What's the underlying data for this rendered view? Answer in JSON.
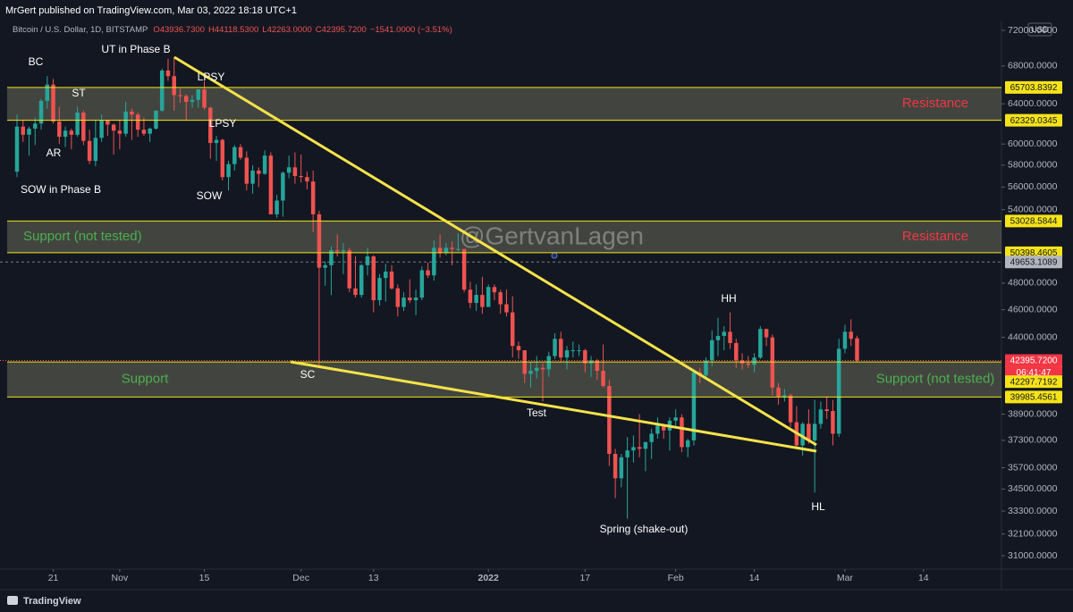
{
  "header": {
    "publisher": "MrGert published on TradingView.com, Mar 03, 2022 18:18 UTC+1",
    "symbol": "Bitcoin / U.S. Dollar, 1D, BITSTAMP",
    "ohlc": [
      "O43936.7300",
      "H44118.5300",
      "L42263.0000",
      "C42395.7200",
      "−1541.0000 (−3.51%)"
    ]
  },
  "footer": {
    "brand": "TradingView"
  },
  "chart_data": {
    "type": "candlestick",
    "currency": "USD",
    "log_scale": true,
    "grid": false,
    "up_color": "#26a69a",
    "down_color": "#ef5350",
    "watermark": "@GertvanLagen",
    "ylim": [
      30340,
      72620
    ],
    "yticks": [
      {
        "value": 72000,
        "label": "72000.0000"
      },
      {
        "value": 68000,
        "label": "68000.0000"
      },
      {
        "value": 64000,
        "label": "64000.0000"
      },
      {
        "value": 60000,
        "label": "60000.0000"
      },
      {
        "value": 58000,
        "label": "58000.0000"
      },
      {
        "value": 56000,
        "label": "56000.0000"
      },
      {
        "value": 54000,
        "label": "54000.0000"
      },
      {
        "value": 48000,
        "label": "48000.0000"
      },
      {
        "value": 46000,
        "label": "46000.0000"
      },
      {
        "value": 44000,
        "label": "44000.0000"
      },
      {
        "value": 38900,
        "label": "38900.0000"
      },
      {
        "value": 37300,
        "label": "37300.0000"
      },
      {
        "value": 35700,
        "label": "35700.0000"
      },
      {
        "value": 34500,
        "label": "34500.0000"
      },
      {
        "value": 33300,
        "label": "33300.0000"
      },
      {
        "value": 32100,
        "label": "32100.0000"
      },
      {
        "value": 31000,
        "label": "31000.0000"
      }
    ],
    "xlim": [
      -2.81,
      162.9
    ],
    "xticks": [
      {
        "value": 6,
        "label": "21"
      },
      {
        "value": 17,
        "label": "Nov"
      },
      {
        "value": 31,
        "label": "15"
      },
      {
        "value": 47,
        "label": "Dec"
      },
      {
        "value": 59,
        "label": "13"
      },
      {
        "value": 78,
        "label": "2022"
      },
      {
        "value": 94,
        "label": "17"
      },
      {
        "value": 109,
        "label": "Feb"
      },
      {
        "value": 122,
        "label": "14"
      },
      {
        "value": 137,
        "label": "Mar"
      },
      {
        "value": 150,
        "label": "14"
      }
    ],
    "zones": [
      {
        "top": {
          "value": 65703.8392,
          "label": "65703.8392"
        },
        "bottom": {
          "value": 62329.0345,
          "label": "62329.0345"
        },
        "right_label": "Resistance"
      },
      {
        "top": {
          "value": 53028.5844,
          "label": "53028.5844"
        },
        "bottom": {
          "value": 50398.4605,
          "label": "50398.4605"
        },
        "left_label": "Support (not tested)",
        "right_label": "Resistance"
      },
      {
        "top": {
          "value": 42297.7192,
          "label": "42297.7192"
        },
        "bottom": {
          "value": 39985.4561,
          "label": "39985.4561"
        },
        "left_label": "Support",
        "right_label": "Support (not tested)"
      }
    ],
    "price_lines": [
      {
        "value": 49653.1089,
        "label": "49653.1089"
      }
    ],
    "last_price": {
      "value": 42395.72,
      "label": "42395.7200",
      "countdown": "06:41:47"
    },
    "annotations": [
      "BC",
      "ST",
      "AR",
      "SOW in Phase B",
      "UT in Phase B",
      "LPSY",
      "LPSY",
      "SOW",
      "SC",
      "Test",
      "Spring (shake-out)",
      "HH",
      "HL"
    ],
    "candles": [
      [
        57400,
        62900,
        56900,
        61700
      ],
      [
        61700,
        62300,
        60200,
        60900
      ],
      [
        60900,
        61700,
        58900,
        61500
      ],
      [
        61500,
        62600,
        59900,
        62000
      ],
      [
        62000,
        64500,
        61400,
        64300
      ],
      [
        64300,
        66900,
        63500,
        66000
      ],
      [
        66000,
        66600,
        62000,
        62200
      ],
      [
        62200,
        63700,
        60000,
        60700
      ],
      [
        60700,
        61700,
        59700,
        61300
      ],
      [
        61300,
        61500,
        59500,
        60900
      ],
      [
        60900,
        63700,
        60700,
        63100
      ],
      [
        63100,
        63300,
        59900,
        60300
      ],
      [
        60300,
        61400,
        58100,
        58400
      ],
      [
        58400,
        62400,
        57900,
        60600
      ],
      [
        60600,
        62900,
        60200,
        62300
      ],
      [
        62300,
        62400,
        60800,
        61900
      ],
      [
        61900,
        62000,
        59000,
        61300
      ],
      [
        61300,
        62400,
        59500,
        61000
      ],
      [
        61000,
        64200,
        60700,
        63200
      ],
      [
        63200,
        63500,
        60400,
        62900
      ],
      [
        62900,
        63100,
        60700,
        61400
      ],
      [
        61400,
        62600,
        60800,
        61000
      ],
      [
        61000,
        61600,
        60200,
        61500
      ],
      [
        61500,
        63300,
        61400,
        63300
      ],
      [
        63300,
        67700,
        63200,
        67500
      ],
      [
        67500,
        68800,
        66400,
        66900
      ],
      [
        66900,
        69000,
        63300,
        64900
      ],
      [
        64900,
        65600,
        64100,
        64800
      ],
      [
        64800,
        65000,
        62300,
        64200
      ],
      [
        64200,
        64900,
        63600,
        64400
      ],
      [
        64400,
        65500,
        63600,
        65500
      ],
      [
        65500,
        66400,
        63400,
        63600
      ],
      [
        63600,
        63700,
        58600,
        60100
      ],
      [
        60100,
        60800,
        58400,
        60400
      ],
      [
        60400,
        60500,
        56600,
        56900
      ],
      [
        56900,
        58400,
        55700,
        58100
      ],
      [
        58100,
        59900,
        57500,
        59700
      ],
      [
        59700,
        60000,
        58500,
        58700
      ],
      [
        58700,
        59300,
        55700,
        56300
      ],
      [
        56300,
        58000,
        55400,
        57500
      ],
      [
        57500,
        57800,
        56000,
        57200
      ],
      [
        57200,
        59400,
        57100,
        58900
      ],
      [
        58900,
        59200,
        53600,
        53600
      ],
      [
        53600,
        55300,
        53300,
        54800
      ],
      [
        54800,
        57400,
        53400,
        57300
      ],
      [
        57300,
        58900,
        56800,
        57800
      ],
      [
        57800,
        59200,
        56300,
        57000
      ],
      [
        57000,
        59000,
        56400,
        56900
      ],
      [
        56900,
        57400,
        55800,
        56500
      ],
      [
        56500,
        57500,
        52100,
        53600
      ],
      [
        53600,
        53900,
        42000,
        49200
      ],
      [
        49200,
        49700,
        47800,
        49400
      ],
      [
        49400,
        50900,
        47100,
        50600
      ],
      [
        50600,
        51900,
        50100,
        50500
      ],
      [
        50500,
        51200,
        48700,
        50600
      ],
      [
        50600,
        50800,
        47300,
        47600
      ],
      [
        47600,
        50100,
        46900,
        47100
      ],
      [
        47100,
        49500,
        46900,
        49400
      ],
      [
        49400,
        50800,
        48600,
        50100
      ],
      [
        50100,
        50200,
        45800,
        46700
      ],
      [
        46700,
        48700,
        46300,
        48400
      ],
      [
        48400,
        49500,
        46600,
        48900
      ],
      [
        48900,
        49400,
        47500,
        47600
      ],
      [
        47600,
        47900,
        45500,
        46200
      ],
      [
        46200,
        47300,
        45900,
        46900
      ],
      [
        46900,
        48300,
        46500,
        46700
      ],
      [
        46700,
        47500,
        45600,
        46900
      ],
      [
        46900,
        49300,
        46700,
        49000
      ],
      [
        49000,
        49600,
        48400,
        48600
      ],
      [
        48600,
        51400,
        48200,
        50800
      ],
      [
        50800,
        51900,
        50000,
        50400
      ],
      [
        50400,
        51200,
        50200,
        50800
      ],
      [
        50800,
        51300,
        49400,
        50700
      ],
      [
        50700,
        52000,
        50500,
        50700
      ],
      [
        50700,
        50700,
        47300,
        47500
      ],
      [
        47500,
        48100,
        46100,
        46500
      ],
      [
        46500,
        47900,
        45900,
        47100
      ],
      [
        47100,
        48500,
        45700,
        46200
      ],
      [
        46200,
        47900,
        46200,
        47700
      ],
      [
        47700,
        47900,
        46700,
        47300
      ],
      [
        47300,
        47500,
        45700,
        46400
      ],
      [
        46400,
        47500,
        45500,
        45800
      ],
      [
        45800,
        47000,
        42600,
        43400
      ],
      [
        43400,
        43700,
        42500,
        43100
      ],
      [
        43100,
        43100,
        40900,
        41500
      ],
      [
        41500,
        42300,
        40600,
        41700
      ],
      [
        41700,
        42700,
        41200,
        41900
      ],
      [
        41900,
        42200,
        39700,
        41800
      ],
      [
        41800,
        43000,
        41300,
        42700
      ],
      [
        42700,
        44300,
        42500,
        43900
      ],
      [
        43900,
        44400,
        42300,
        42600
      ],
      [
        42600,
        43400,
        41800,
        43100
      ],
      [
        43100,
        43700,
        42600,
        43100
      ],
      [
        43100,
        43500,
        42700,
        43100
      ],
      [
        43100,
        43200,
        41600,
        42200
      ],
      [
        42200,
        42700,
        41300,
        42400
      ],
      [
        42400,
        42500,
        41100,
        41700
      ],
      [
        41700,
        43500,
        40600,
        40700
      ],
      [
        40700,
        41100,
        35800,
        36500
      ],
      [
        36500,
        36800,
        34000,
        35100
      ],
      [
        35100,
        36500,
        34600,
        36300
      ],
      [
        36300,
        37500,
        32900,
        36700
      ],
      [
        36700,
        37600,
        36000,
        36900
      ],
      [
        36900,
        38900,
        36300,
        36800
      ],
      [
        36800,
        37200,
        35500,
        37200
      ],
      [
        37200,
        38000,
        36200,
        37700
      ],
      [
        37700,
        38700,
        37400,
        38200
      ],
      [
        38200,
        38300,
        37400,
        37900
      ],
      [
        37900,
        38700,
        36700,
        38500
      ],
      [
        38500,
        39200,
        38100,
        38700
      ],
      [
        38700,
        38900,
        36600,
        36900
      ],
      [
        36900,
        37400,
        36300,
        37300
      ],
      [
        37300,
        41800,
        37000,
        41600
      ],
      [
        41600,
        41900,
        40900,
        41400
      ],
      [
        41400,
        42600,
        41200,
        42400
      ],
      [
        42400,
        44500,
        42000,
        43800
      ],
      [
        43800,
        45400,
        42700,
        44100
      ],
      [
        44100,
        44800,
        43100,
        44400
      ],
      [
        44400,
        45800,
        43200,
        43600
      ],
      [
        43600,
        43900,
        41900,
        42400
      ],
      [
        42400,
        42900,
        41800,
        42200
      ],
      [
        42200,
        42700,
        41900,
        42100
      ],
      [
        42100,
        42900,
        41600,
        42600
      ],
      [
        42600,
        44800,
        42500,
        44600
      ],
      [
        44600,
        44600,
        43400,
        44000
      ],
      [
        44000,
        44200,
        40100,
        40600
      ],
      [
        40600,
        40900,
        39500,
        40000
      ],
      [
        40000,
        40500,
        39700,
        40100
      ],
      [
        40100,
        40200,
        38100,
        38400
      ],
      [
        38400,
        39400,
        36800,
        37000
      ],
      [
        37000,
        38400,
        36400,
        38300
      ],
      [
        38300,
        39200,
        37100,
        37300
      ],
      [
        37300,
        39800,
        34300,
        38300
      ],
      [
        38300,
        39700,
        38000,
        39200
      ],
      [
        39200,
        40000,
        38600,
        39100
      ],
      [
        39100,
        39800,
        37000,
        37700
      ],
      [
        37700,
        43900,
        37500,
        43200
      ],
      [
        43200,
        44900,
        42900,
        44400
      ],
      [
        44400,
        45300,
        43400,
        43900
      ],
      [
        43936.73,
        44118.53,
        42263,
        42395.72
      ]
    ]
  }
}
